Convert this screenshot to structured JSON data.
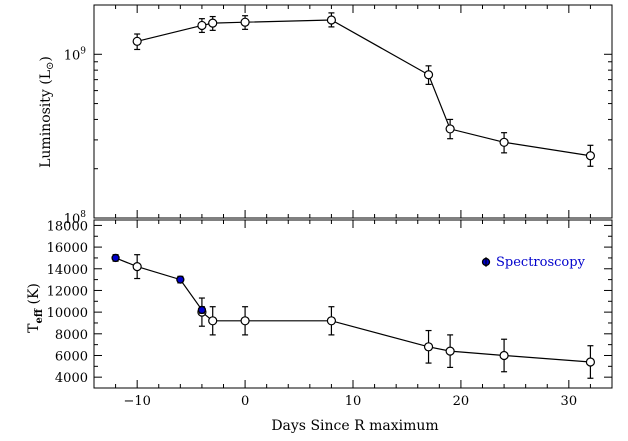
{
  "chart_data": [
    {
      "type": "line",
      "ylabel": "Luminosity (L",
      "ylabel_symbol": "⊙",
      "ylabel_close": ")",
      "yscale": "log",
      "ylim": [
        100000000.0,
        2000000000.0
      ],
      "xlim": [
        -14,
        34
      ],
      "yticks": [
        {
          "value": 100000000.0,
          "mant": "10",
          "exp": "8"
        },
        {
          "value": 1000000000.0,
          "mant": "10",
          "exp": "9"
        }
      ],
      "series": [
        {
          "x": [
            -10,
            -4,
            -3,
            0,
            8,
            17,
            19,
            24,
            32
          ],
          "y": [
            1200000000.0,
            1500000000.0,
            1550000000.0,
            1570000000.0,
            1620000000.0,
            750000000.0,
            350000000.0,
            290000000.0,
            240000000.0
          ],
          "err_lo": [
            1070000000.0,
            1360000000.0,
            1400000000.0,
            1420000000.0,
            1470000000.0,
            655000000.0,
            305000000.0,
            250000000.0,
            207000000.0
          ],
          "err_hi": [
            1330000000.0,
            1650000000.0,
            1700000000.0,
            1720000000.0,
            1790000000.0,
            850000000.0,
            400000000.0,
            332000000.0,
            278000000.0
          ]
        }
      ]
    },
    {
      "type": "line",
      "ylabel_main": "T",
      "ylabel_sub": "eff",
      "ylabel_unit": " (K)",
      "ylim": [
        3000,
        18500
      ],
      "xlim": [
        -14,
        34
      ],
      "yticks": [
        4000,
        6000,
        8000,
        10000,
        12000,
        14000,
        16000,
        18000
      ],
      "xticks": [
        -10,
        0,
        10,
        20,
        30
      ],
      "xlabel": "Days Since R maximum",
      "legend_label": "Spectroscopy",
      "legend_color": "#0000cc",
      "series": [
        {
          "x": [
            -10,
            -4,
            -3,
            0,
            8,
            17,
            19,
            24,
            32
          ],
          "y": [
            14200,
            10000,
            9200,
            9200,
            9200,
            6800,
            6400,
            6000,
            5400
          ],
          "err": [
            1100,
            1300,
            1300,
            1300,
            1300,
            1500,
            1500,
            1500,
            1500
          ]
        }
      ],
      "spectroscopy": {
        "x": [
          -12,
          -6,
          -4
        ],
        "y": [
          15000,
          13000,
          10200
        ],
        "err": [
          300,
          300,
          300
        ]
      },
      "line_x": [
        -12,
        -10,
        -6,
        -4,
        -4,
        -3,
        0,
        8,
        17,
        19,
        24,
        32
      ],
      "line_y": [
        15000,
        14200,
        13000,
        10200,
        10000,
        9200,
        9200,
        9200,
        6800,
        6400,
        6000,
        5400
      ]
    }
  ]
}
